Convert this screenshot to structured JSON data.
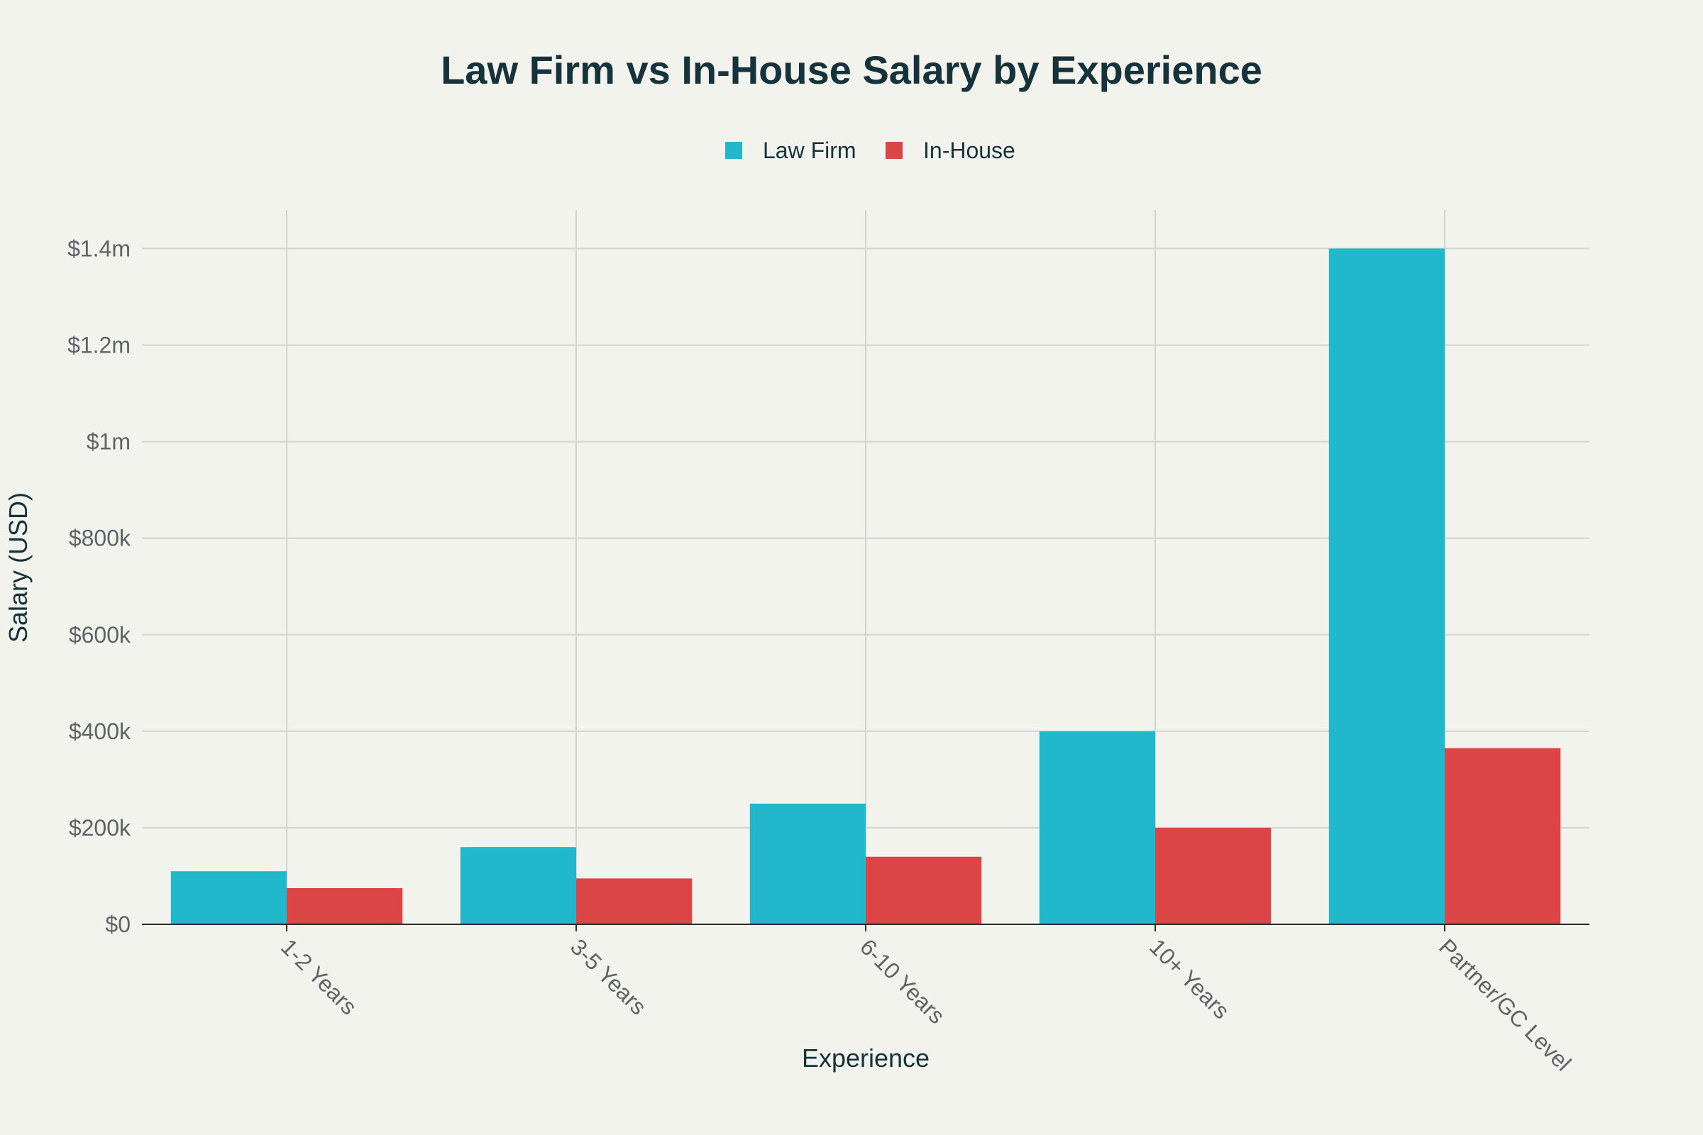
{
  "chart_data": {
    "type": "bar",
    "title": "Law Firm vs In-House Salary by Experience",
    "xlabel": "Experience",
    "ylabel": "Salary (USD)",
    "categories": [
      "1-2 Years",
      "3-5 Years",
      "6-10 Years",
      "10+ Years",
      "Partner/GC Level"
    ],
    "series": [
      {
        "name": "Law Firm",
        "color": "#21b8cc",
        "values": [
          110000,
          160000,
          250000,
          400000,
          1400000
        ]
      },
      {
        "name": "In-House",
        "color": "#db4545",
        "values": [
          75000,
          95000,
          140000,
          200000,
          365000
        ]
      }
    ],
    "ylim": [
      0,
      1480000
    ],
    "yticks": [
      0,
      200000,
      400000,
      600000,
      800000,
      1000000,
      1200000,
      1400000
    ],
    "ytick_labels": [
      "$0",
      "$200k",
      "$400k",
      "$600k",
      "$800k",
      "$1m",
      "$1.2m",
      "$1.4m"
    ],
    "grid": true,
    "legend_position": "top-center"
  }
}
